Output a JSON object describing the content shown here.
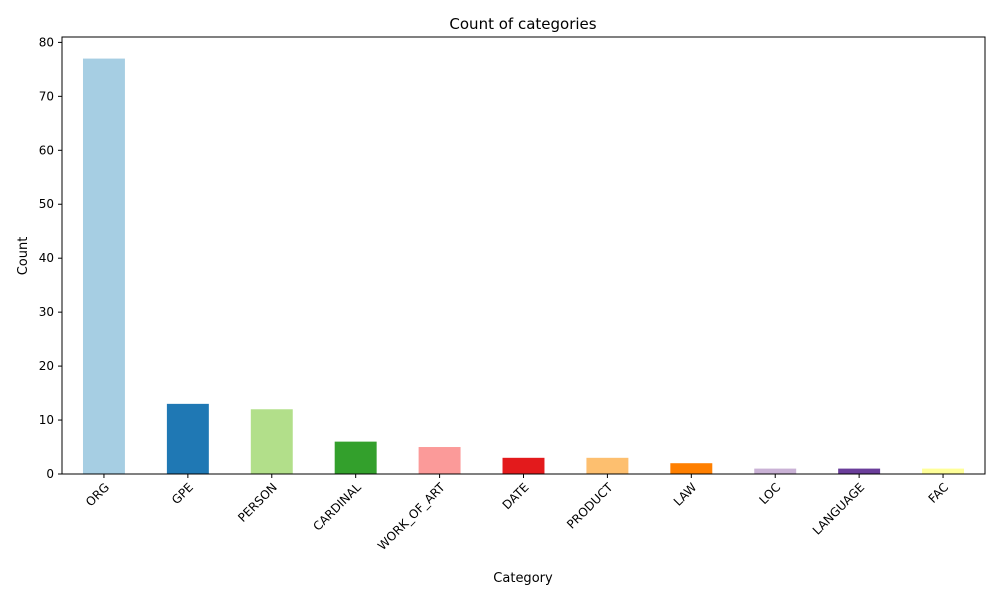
{
  "chart_data": {
    "type": "bar",
    "title": "Count of categories",
    "xlabel": "Category",
    "ylabel": "Count",
    "categories": [
      "ORG",
      "GPE",
      "PERSON",
      "CARDINAL",
      "WORK_OF_ART",
      "DATE",
      "PRODUCT",
      "LAW",
      "LOC",
      "LANGUAGE",
      "FAC"
    ],
    "values": [
      77,
      13,
      12,
      6,
      5,
      3,
      3,
      2,
      1,
      1,
      1
    ],
    "colors": [
      "#a6cee3",
      "#1f78b4",
      "#b2df8a",
      "#33a02c",
      "#fb9a99",
      "#e31a1c",
      "#fdbf6f",
      "#ff7f00",
      "#cab2d6",
      "#6a3d9a",
      "#ffff99"
    ],
    "ylim": [
      0,
      81
    ],
    "yticks": [
      0,
      10,
      20,
      30,
      40,
      50,
      60,
      70,
      80
    ],
    "grid": false,
    "legend": "none",
    "xtick_rotation": 45
  }
}
